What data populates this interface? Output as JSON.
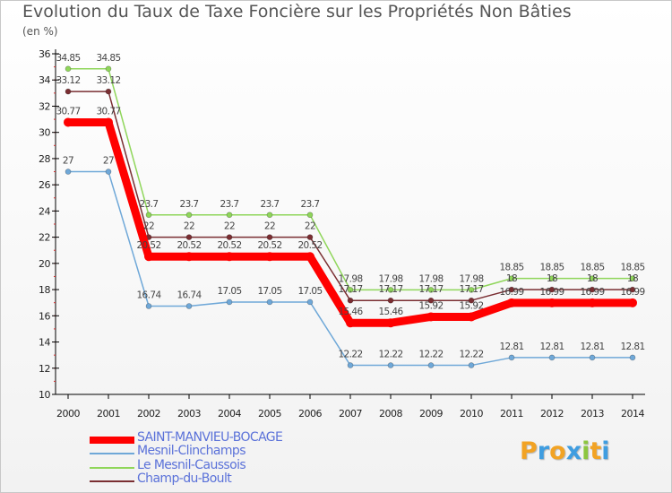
{
  "chart_data": {
    "type": "line",
    "title": "Evolution du Taux de Taxe Foncière sur les Propriétés Non Bâties",
    "ylabel": "(en %)",
    "xlabel": "",
    "categories": [
      "2000",
      "2001",
      "2002",
      "2003",
      "2004",
      "2005",
      "2006",
      "2007",
      "2008",
      "2009",
      "2010",
      "2011",
      "2012",
      "2013",
      "2014"
    ],
    "ylim": [
      10,
      36
    ],
    "yticks": [
      10,
      12,
      14,
      16,
      18,
      20,
      22,
      24,
      26,
      28,
      30,
      32,
      34,
      36
    ],
    "series": [
      {
        "name": "SAINT-MANVIEU-BOCAGE",
        "color": "#ff0000",
        "values": [
          30.77,
          30.77,
          20.52,
          20.52,
          20.52,
          20.52,
          20.52,
          15.46,
          15.46,
          15.92,
          15.92,
          16.99,
          16.99,
          16.99,
          16.99
        ],
        "labels": [
          "30.77",
          "30.77",
          "20.52",
          "20.52",
          "20.52",
          "20.52",
          "20.52",
          "15.46",
          "15.46",
          "15.92",
          "15.92",
          "16.99",
          "16.99",
          "16.99",
          "16.99"
        ]
      },
      {
        "name": "Mesnil-Clinchamps",
        "color": "#6fa8d8",
        "values": [
          27,
          27,
          16.74,
          16.74,
          17.05,
          17.05,
          17.05,
          12.22,
          12.22,
          12.22,
          12.22,
          12.81,
          12.81,
          12.81,
          12.81
        ],
        "labels": [
          "27",
          "27",
          "16.74",
          "16.74",
          "17.05",
          "17.05",
          "17.05",
          "12.22",
          "12.22",
          "12.22",
          "12.22",
          "12.81",
          "12.81",
          "12.81",
          "12.81"
        ]
      },
      {
        "name": "Le Mesnil-Caussois",
        "color": "#8fd65a",
        "values": [
          34.85,
          34.85,
          23.7,
          23.7,
          23.7,
          23.7,
          23.7,
          17.98,
          17.98,
          17.98,
          17.98,
          18.85,
          18.85,
          18.85,
          18.85
        ],
        "labels": [
          "34.85",
          "34.85",
          "23.7",
          "23.7",
          "23.7",
          "23.7",
          "23.7",
          "17.98",
          "17.98",
          "17.98",
          "17.98",
          "18.85",
          "18.85",
          "18.85",
          "18.85"
        ]
      },
      {
        "name": "Champ-du-Boult",
        "color": "#7a2e32",
        "values": [
          33.12,
          33.12,
          22,
          22,
          22,
          22,
          22,
          17.17,
          17.17,
          17.17,
          17.17,
          18,
          18,
          18,
          18
        ],
        "labels": [
          "33.12",
          "33.12",
          "22",
          "22",
          "22",
          "22",
          "22",
          "17.17",
          "17.17",
          "17.17",
          "17.17",
          "18",
          "18",
          "18",
          "18"
        ]
      }
    ],
    "grid": false,
    "legend_position": "bottom-left"
  },
  "logo": {
    "letters": [
      "P",
      "r",
      "o",
      "x",
      "i",
      "t",
      "i"
    ],
    "colors": [
      "#f2a324",
      "#3f9de0",
      "#f2a324",
      "#3f9de0",
      "#8cc63f",
      "#f2a324",
      "#3f9de0"
    ]
  }
}
